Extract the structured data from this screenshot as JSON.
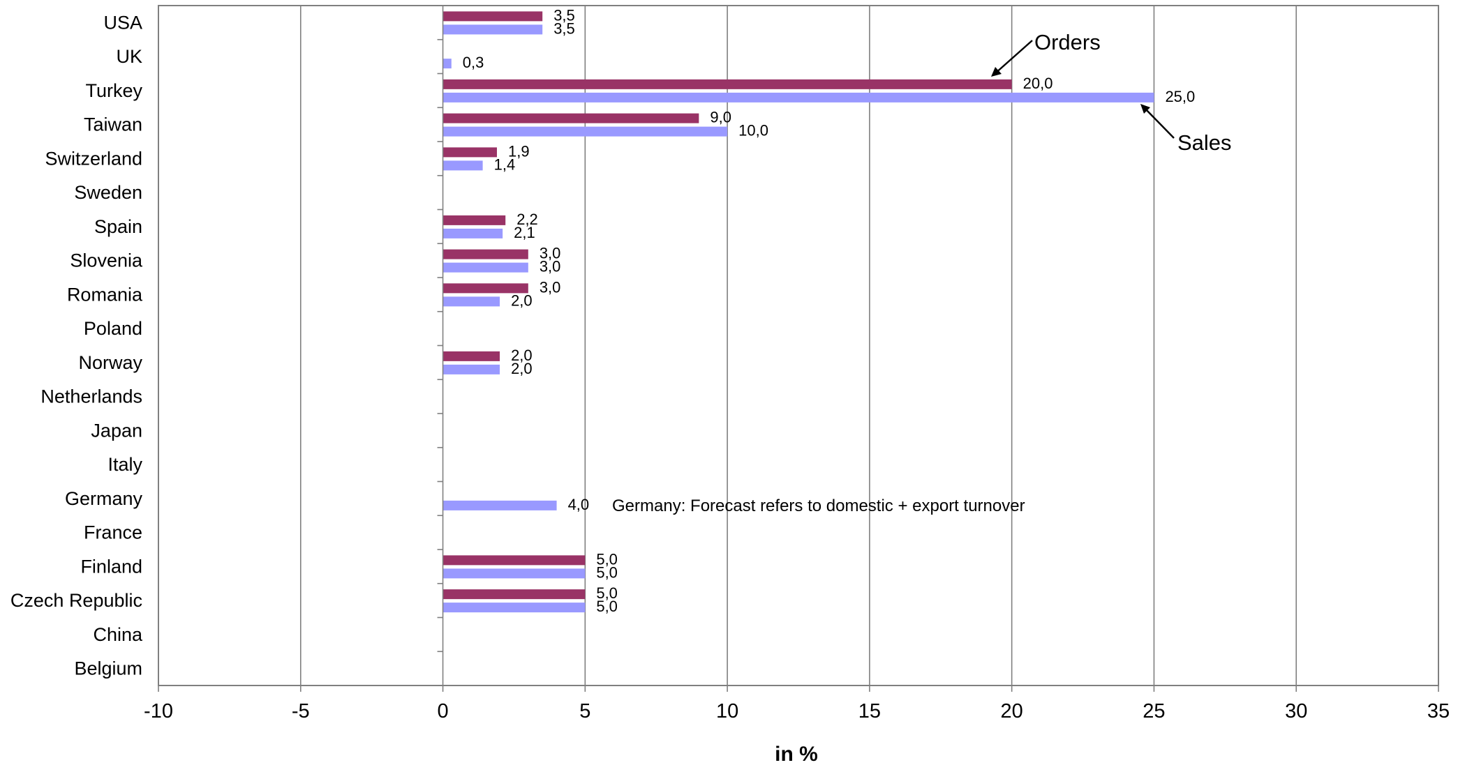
{
  "chart_data": {
    "type": "bar",
    "orientation": "horizontal",
    "categories": [
      "USA",
      "UK",
      "Turkey",
      "Taiwan",
      "Switzerland",
      "Sweden",
      "Spain",
      "Slovenia",
      "Romania",
      "Poland",
      "Norway",
      "Netherlands",
      "Japan",
      "Italy",
      "Germany",
      "France",
      "Finland",
      "Czech Republic",
      "China",
      "Belgium"
    ],
    "series": [
      {
        "name": "Orders",
        "color": "#993366",
        "values": [
          3.5,
          null,
          20.0,
          9.0,
          1.9,
          null,
          2.2,
          3.0,
          3.0,
          null,
          2.0,
          null,
          null,
          null,
          null,
          null,
          5.0,
          5.0,
          null,
          null
        ],
        "labels": [
          "3,5",
          "",
          "20,0",
          "9,0",
          "1,9",
          "",
          "2,2",
          "3,0",
          "3,0",
          "",
          "2,0",
          "",
          "",
          "",
          "",
          "",
          "5,0",
          "5,0",
          "",
          ""
        ]
      },
      {
        "name": "Sales",
        "color": "#9999ff",
        "values": [
          3.5,
          0.3,
          25.0,
          10.0,
          1.4,
          null,
          2.1,
          3.0,
          2.0,
          null,
          2.0,
          null,
          null,
          null,
          4.0,
          null,
          5.0,
          5.0,
          null,
          null
        ],
        "labels": [
          "3,5",
          "0,3",
          "25,0",
          "10,0",
          "1,4",
          "",
          "2,1",
          "3,0",
          "2,0",
          "",
          "2,0",
          "",
          "",
          "",
          "4,0",
          "",
          "5,0",
          "5,0",
          "",
          ""
        ]
      }
    ],
    "xlim": [
      -10,
      35
    ],
    "xticks": [
      -10,
      -5,
      0,
      5,
      10,
      15,
      20,
      25,
      30,
      35
    ],
    "xtick_labels": [
      "-10",
      "-5",
      "0",
      "5",
      "10",
      "15",
      "20",
      "25",
      "30",
      "35"
    ],
    "xlabel": "in %",
    "ylabel": "",
    "title": "",
    "grid": "vertical",
    "annotations": {
      "orders": "Orders",
      "sales": "Sales",
      "germany_note": "Germany: Forecast refers to domestic + export turnover"
    }
  }
}
